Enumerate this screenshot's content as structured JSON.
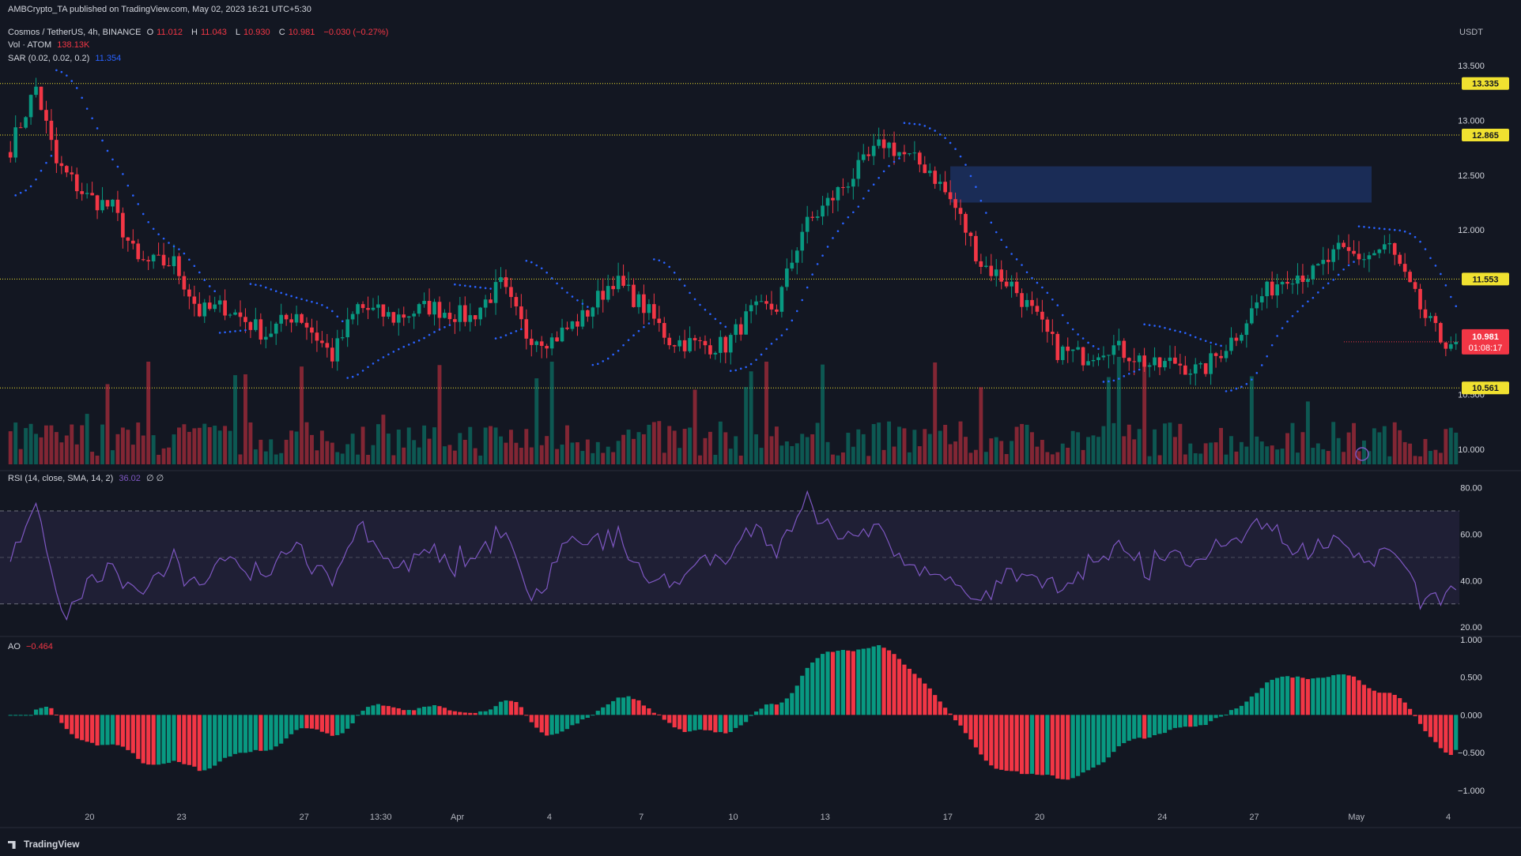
{
  "publisher_line": "AMBCrypto_TA published on TradingView.com, May 02, 2023 16:21 UTC+5:30",
  "header": {
    "symbol": "Cosmos / TetherUS, 4h, BINANCE",
    "ohlc": {
      "o_label": "O",
      "o": "11.012",
      "h_label": "H",
      "h": "11.043",
      "l_label": "L",
      "l": "10.930",
      "c_label": "C",
      "c": "10.981",
      "chg": "−0.030 (−0.27%)"
    },
    "vol_label": "Vol · ATOM",
    "vol_value": "138.13K",
    "sar_label": "SAR (0.02, 0.02, 0.2)",
    "sar_value": "11.354",
    "rsi_label": "RSI (14, close, SMA, 14, 2)",
    "rsi_value": "36.02",
    "rsi_extra": "∅ ∅",
    "ao_label": "AO",
    "ao_value": "−0.464"
  },
  "footer_logo": "TradingView",
  "colors": {
    "bg": "#131722",
    "up": "#089981",
    "down": "#f23645",
    "sar": "#2962ff",
    "rsi": "#7e57c2",
    "ao_up": "#089981",
    "ao_down": "#f23645",
    "level": "#f0e130",
    "zone": "#1c2f5c"
  },
  "chart_data": [
    {
      "type": "candlestick",
      "title": "Cosmos / TetherUS, 4h, BINANCE",
      "y_unit": "USDT",
      "ylim": [
        9.85,
        13.7
      ],
      "y_ticks": [
        "13.500",
        "13.000",
        "12.500",
        "12.000",
        "10.500",
        "10.000"
      ],
      "x_ticks": [
        "20",
        "23",
        "27",
        "13:30",
        "Apr",
        "4",
        "7",
        "10",
        "13",
        "17",
        "20",
        "24",
        "27",
        "May",
        "4"
      ],
      "last_price": "10.981",
      "countdown": "01:08:17",
      "levels": [
        "13.335",
        "12.865",
        "11.553",
        "10.561"
      ],
      "zone": {
        "from_date": "Apr 18",
        "to_date": "May 03",
        "top": 12.58,
        "bottom": 12.25
      },
      "anchors": [
        {
          "i": 0,
          "p": 12.75
        },
        {
          "i": 5,
          "p": 13.3
        },
        {
          "i": 9,
          "p": 12.6
        },
        {
          "i": 15,
          "p": 12.3
        },
        {
          "i": 20,
          "p": 12.2
        },
        {
          "i": 25,
          "p": 11.7
        },
        {
          "i": 32,
          "p": 11.7
        },
        {
          "i": 37,
          "p": 11.25
        },
        {
          "i": 42,
          "p": 11.3
        },
        {
          "i": 50,
          "p": 11.05
        },
        {
          "i": 56,
          "p": 11.25
        },
        {
          "i": 63,
          "p": 10.85
        },
        {
          "i": 68,
          "p": 11.3
        },
        {
          "i": 75,
          "p": 11.2
        },
        {
          "i": 82,
          "p": 11.3
        },
        {
          "i": 90,
          "p": 11.2
        },
        {
          "i": 96,
          "p": 11.5
        },
        {
          "i": 101,
          "p": 11.05
        },
        {
          "i": 106,
          "p": 11.0
        },
        {
          "i": 112,
          "p": 11.2
        },
        {
          "i": 118,
          "p": 11.55
        },
        {
          "i": 124,
          "p": 11.3
        },
        {
          "i": 129,
          "p": 11.0
        },
        {
          "i": 135,
          "p": 10.95
        },
        {
          "i": 140,
          "p": 10.95
        },
        {
          "i": 145,
          "p": 11.25
        },
        {
          "i": 150,
          "p": 11.3
        },
        {
          "i": 155,
          "p": 12.0
        },
        {
          "i": 160,
          "p": 12.25
        },
        {
          "i": 166,
          "p": 12.55
        },
        {
          "i": 171,
          "p": 12.8
        },
        {
          "i": 176,
          "p": 12.65
        },
        {
          "i": 180,
          "p": 12.55
        },
        {
          "i": 185,
          "p": 12.2
        },
        {
          "i": 190,
          "p": 11.7
        },
        {
          "i": 196,
          "p": 11.5
        },
        {
          "i": 200,
          "p": 11.25
        },
        {
          "i": 205,
          "p": 10.9
        },
        {
          "i": 210,
          "p": 10.85
        },
        {
          "i": 215,
          "p": 10.95
        },
        {
          "i": 220,
          "p": 10.85
        },
        {
          "i": 224,
          "p": 10.75
        },
        {
          "i": 228,
          "p": 10.8
        },
        {
          "i": 233,
          "p": 10.7
        },
        {
          "i": 240,
          "p": 11.05
        },
        {
          "i": 245,
          "p": 11.4
        },
        {
          "i": 250,
          "p": 11.6
        },
        {
          "i": 255,
          "p": 11.6
        },
        {
          "i": 260,
          "p": 11.8
        },
        {
          "i": 265,
          "p": 11.75
        },
        {
          "i": 270,
          "p": 11.85
        },
        {
          "i": 273,
          "p": 11.55
        },
        {
          "i": 277,
          "p": 11.2
        },
        {
          "i": 280,
          "p": 11.0
        },
        {
          "i": 283,
          "p": 10.98
        }
      ],
      "candles": 284
    },
    {
      "type": "line",
      "title": "RSI (14, close, SMA, 14, 2)",
      "ylim": [
        18,
        86
      ],
      "y_ticks": [
        "80.00",
        "60.00",
        "40.00",
        "20.00"
      ],
      "bands": [
        70,
        50,
        30
      ],
      "last": "36.02"
    },
    {
      "type": "bar",
      "title": "AO",
      "ylim": [
        -1.2,
        1.05
      ],
      "y_ticks": [
        "1.000",
        "0.500",
        "0.000",
        "−0.500",
        "−1.000"
      ],
      "last": "−0.464"
    }
  ]
}
